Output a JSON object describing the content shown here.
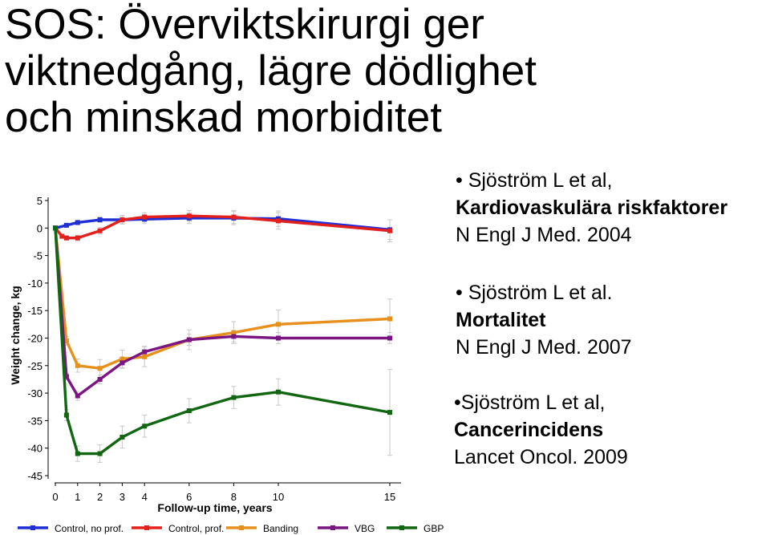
{
  "title": {
    "lines": [
      "SOS: Överviktskirurgi ger",
      "viktnedgång, lägre dödlighet",
      "och minskad morbiditet"
    ]
  },
  "references": [
    {
      "line1": "• Sjöström L et al,",
      "line2": "Kardiovaskulära riskfaktorer",
      "line3": "N Engl J Med. 2004"
    },
    {
      "line1": "• Sjöström L et al.",
      "line2": "Mortalitet",
      "line3": "N Engl J Med. 2007"
    },
    {
      "line1": "•Sjöström L et al,",
      "line2": "Cancerincidens",
      "line3": "Lancet Oncol. 2009"
    }
  ],
  "chart_data": {
    "type": "line",
    "title": "",
    "xlabel": "Follow-up time, years",
    "ylabel": "Weight change, kg",
    "xlim": [
      0,
      15.2
    ],
    "ylim": [
      -45,
      5
    ],
    "xticks": [
      0,
      1,
      2,
      3,
      4,
      6,
      8,
      10,
      15
    ],
    "yticks": [
      5,
      0,
      -5,
      -10,
      -15,
      -20,
      -25,
      -30,
      -35,
      -40,
      -45
    ],
    "legend_position": "bottom",
    "series": [
      {
        "name": "Control, no prof.",
        "color": "#1f2fd6",
        "x": [
          0,
          0.5,
          1,
          2,
          3,
          4,
          6,
          8,
          10,
          15
        ],
        "y": [
          0,
          0.5,
          1,
          1.5,
          1.5,
          1.6,
          1.8,
          1.8,
          1.7,
          -0.3
        ],
        "err": [
          0,
          0.3,
          0.4,
          0.5,
          0.6,
          0.8,
          1,
          1.2,
          1.4,
          1.8
        ]
      },
      {
        "name": "Control, prof.",
        "color": "#e3201b",
        "x": [
          0,
          0.3,
          0.5,
          1,
          2,
          3,
          4,
          6,
          8,
          10,
          15
        ],
        "y": [
          0,
          -1.5,
          -1.8,
          -1.8,
          -0.5,
          1.5,
          2,
          2.2,
          2,
          1.3,
          -0.5
        ],
        "err": [
          0,
          0.3,
          0.4,
          0.5,
          0.6,
          0.8,
          0.8,
          1,
          1.2,
          1.5,
          2
        ]
      },
      {
        "name": "Banding",
        "color": "#e8901e",
        "x": [
          0,
          0.5,
          1,
          2,
          3,
          4,
          6,
          8,
          10,
          15
        ],
        "y": [
          0,
          -20.5,
          -25,
          -25.5,
          -23.8,
          -23.4,
          -20.3,
          -19,
          -17.5,
          -16.5
        ],
        "err": [
          0,
          0.8,
          1.2,
          1.6,
          1.6,
          1.8,
          1.8,
          2,
          2.6,
          3.6
        ]
      },
      {
        "name": "VBG",
        "color": "#7a1582",
        "x": [
          0,
          0.5,
          1,
          2,
          3,
          4,
          6,
          8,
          10,
          15
        ],
        "y": [
          0,
          -27,
          -30.5,
          -27.5,
          -24.5,
          -22.5,
          -20.3,
          -19.7,
          -20,
          -20
        ],
        "err": [
          0,
          0.6,
          0.8,
          0.8,
          1,
          1,
          1,
          1,
          1,
          1
        ]
      },
      {
        "name": "GBP",
        "color": "#116611",
        "x": [
          0,
          0.5,
          1,
          2,
          3,
          4,
          6,
          8,
          10,
          15
        ],
        "y": [
          0,
          -34,
          -41,
          -41,
          -38,
          -36,
          -33.2,
          -30.8,
          -29.8,
          -33.5
        ],
        "err": [
          0,
          1,
          1.4,
          1.6,
          2,
          2,
          2.2,
          2,
          2.4,
          7.8
        ]
      }
    ]
  }
}
